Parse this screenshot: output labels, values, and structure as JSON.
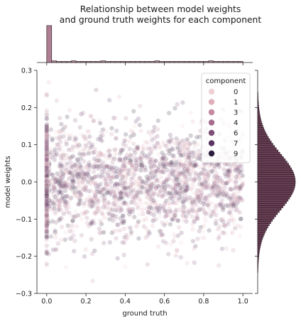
{
  "chart_data": {
    "type": "scatter",
    "title_lines": [
      "Relationship between model weights",
      "and ground truth weights for each component"
    ],
    "xlabel": "ground truth",
    "ylabel": "model weights",
    "xlim": [
      -0.05,
      1.05
    ],
    "ylim": [
      -0.3,
      0.3
    ],
    "x_ticks": [
      0.0,
      0.2,
      0.4,
      0.6,
      0.8,
      1.0
    ],
    "x_tick_labels": [
      "0.0",
      "0.2",
      "0.4",
      "0.6",
      "0.8",
      "1.0"
    ],
    "y_ticks": [
      -0.3,
      -0.2,
      -0.1,
      0.0,
      0.1,
      0.2,
      0.3
    ],
    "y_tick_labels": [
      "−0.3",
      "−0.2",
      "−0.1",
      "0.0",
      "0.1",
      "0.2",
      "0.3"
    ],
    "grid": false,
    "legend": {
      "title": "component",
      "placement": "top-right",
      "entries": [
        {
          "label": "0",
          "color": "#efd1d5"
        },
        {
          "label": "1",
          "color": "#dfb0bb"
        },
        {
          "label": "3",
          "color": "#c48aa2"
        },
        {
          "label": "4",
          "color": "#a66d8f"
        },
        {
          "label": "6",
          "color": "#7e4f78"
        },
        {
          "label": "7",
          "color": "#5a3562"
        },
        {
          "label": "9",
          "color": "#2c1c3d"
        }
      ]
    },
    "scatter_distribution": {
      "x_uniform_range": [
        0.0,
        1.0
      ],
      "x_zero_fraction": 0.22,
      "y_mean": 0.0,
      "y_std": 0.075,
      "point_alpha": 0.2
    },
    "marginal_x_histogram": {
      "bin_edges_start": 0.0,
      "bin_width": 0.025,
      "heights_fraction": [
        1.0,
        0.045,
        0.03,
        0.03,
        0.03,
        0.045,
        0.03,
        0.03,
        0.03,
        0.03,
        0.03,
        0.045,
        0.03,
        0.03,
        0.03,
        0.03,
        0.03,
        0.03,
        0.03,
        0.03,
        0.03,
        0.03,
        0.045,
        0.03,
        0.03,
        0.03,
        0.03,
        0.03,
        0.03,
        0.03,
        0.03,
        0.03,
        0.03,
        0.045,
        0.03,
        0.03,
        0.03,
        0.03,
        0.03,
        0.03
      ],
      "color": "#b07e93"
    },
    "marginal_y_histogram": {
      "distribution": "normal",
      "mean": 0.0,
      "std": 0.075,
      "bin_width": 0.006,
      "color": "#6a4055"
    }
  }
}
